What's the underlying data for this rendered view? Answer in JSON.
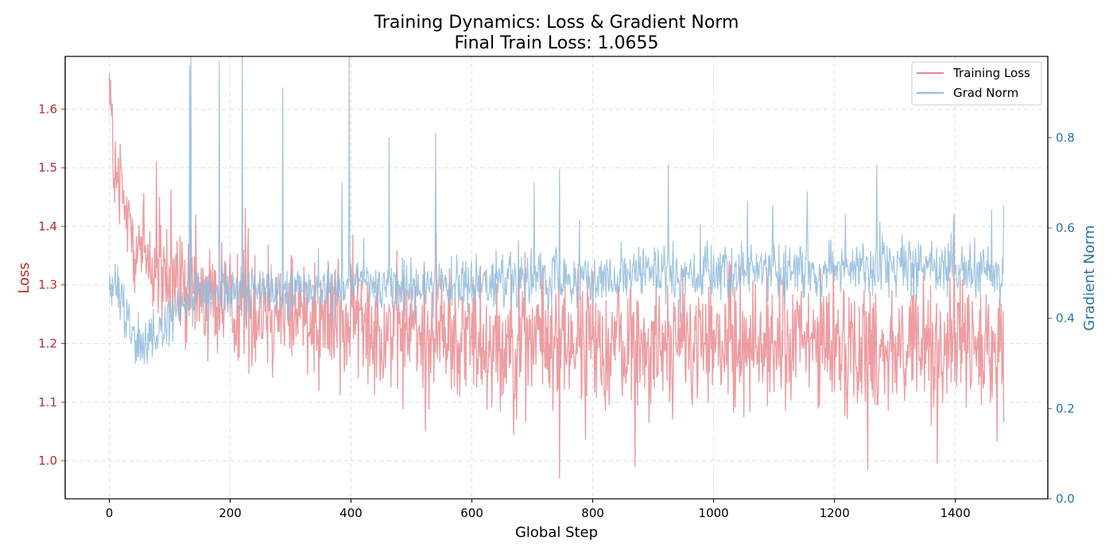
{
  "chart_data": {
    "type": "line",
    "title": "Training Dynamics: Loss & Gradient Norm",
    "subtitle": "Final Train Loss: 1.0655",
    "xlabel": "Global Step",
    "ylabel_left": "Loss",
    "ylabel_right": "Gradient Norm",
    "xlim": [
      -73,
      1553
    ],
    "ylim_left": [
      0.935,
      1.69
    ],
    "ylim_right": [
      0.0,
      0.98
    ],
    "x_ticks": [
      0,
      200,
      400,
      600,
      800,
      1000,
      1200,
      1400
    ],
    "x_tick_labels": [
      "0",
      "200",
      "400",
      "600",
      "800",
      "1000",
      "1200",
      "1400"
    ],
    "y_left_ticks": [
      1.0,
      1.1,
      1.2,
      1.3,
      1.4,
      1.5,
      1.6
    ],
    "y_left_tick_labels": [
      "1.0",
      "1.1",
      "1.2",
      "1.3",
      "1.4",
      "1.5",
      "1.6"
    ],
    "y_right_ticks": [
      0.0,
      0.2,
      0.4,
      0.6,
      0.8
    ],
    "y_right_tick_labels": [
      "0.0",
      "0.2",
      "0.4",
      "0.6",
      "0.8"
    ],
    "grid": true,
    "legend_position": "top-right",
    "colors": {
      "loss": "#e8868b",
      "grad": "#90bbdc",
      "left_axis": "#c0282d",
      "right_axis": "#2a74a9"
    },
    "series": [
      {
        "name": "Training Loss",
        "axis": "left",
        "x_range": [
          0,
          1480
        ],
        "anchors_x": [
          0,
          10,
          20,
          40,
          60,
          80,
          100,
          150,
          200,
          300,
          400,
          500,
          600,
          800,
          1000,
          1200,
          1400,
          1480
        ],
        "anchors_y": [
          1.62,
          1.47,
          1.44,
          1.39,
          1.35,
          1.32,
          1.3,
          1.28,
          1.27,
          1.26,
          1.24,
          1.22,
          1.21,
          1.2,
          1.2,
          1.2,
          1.19,
          1.18
        ],
        "noise_amplitude": 0.055,
        "peaks": [
          [
            0,
            1.66
          ],
          [
            2,
            1.65
          ],
          [
            18,
            1.54
          ],
          [
            78,
            1.51
          ],
          [
            225,
            1.43
          ],
          [
            745,
            0.97
          ],
          [
            870,
            0.99
          ],
          [
            1255,
            0.985
          ],
          [
            1370,
            0.995
          ],
          [
            1398,
            1.38
          ],
          [
            1480,
            1.0655
          ]
        ]
      },
      {
        "name": "Grad Norm",
        "axis": "right",
        "x_range": [
          0,
          1480
        ],
        "anchors_x": [
          0,
          10,
          20,
          30,
          40,
          50,
          60,
          80,
          100,
          120,
          150,
          200,
          300,
          400,
          500,
          600,
          700,
          800,
          900,
          1000,
          1100,
          1200,
          1300,
          1400,
          1480
        ],
        "anchors_y": [
          0.47,
          0.46,
          0.44,
          0.4,
          0.37,
          0.35,
          0.345,
          0.36,
          0.39,
          0.42,
          0.45,
          0.46,
          0.465,
          0.47,
          0.47,
          0.475,
          0.48,
          0.49,
          0.5,
          0.5,
          0.505,
          0.51,
          0.51,
          0.51,
          0.5
        ],
        "noise_amplitude": 0.03,
        "spikes": [
          [
            133,
            0.96
          ],
          [
            135,
            0.98
          ],
          [
            182,
            0.97
          ],
          [
            220,
            0.98
          ],
          [
            287,
            0.91
          ],
          [
            385,
            0.7
          ],
          [
            397,
            0.98
          ],
          [
            463,
            0.8
          ],
          [
            540,
            0.81
          ],
          [
            703,
            0.7
          ],
          [
            745,
            0.73
          ],
          [
            925,
            0.74
          ],
          [
            1056,
            0.66
          ],
          [
            1098,
            0.65
          ],
          [
            1155,
            0.68
          ],
          [
            1218,
            0.63
          ],
          [
            1270,
            0.74
          ],
          [
            1398,
            0.63
          ],
          [
            1460,
            0.64
          ],
          [
            1480,
            0.65
          ]
        ]
      }
    ]
  }
}
